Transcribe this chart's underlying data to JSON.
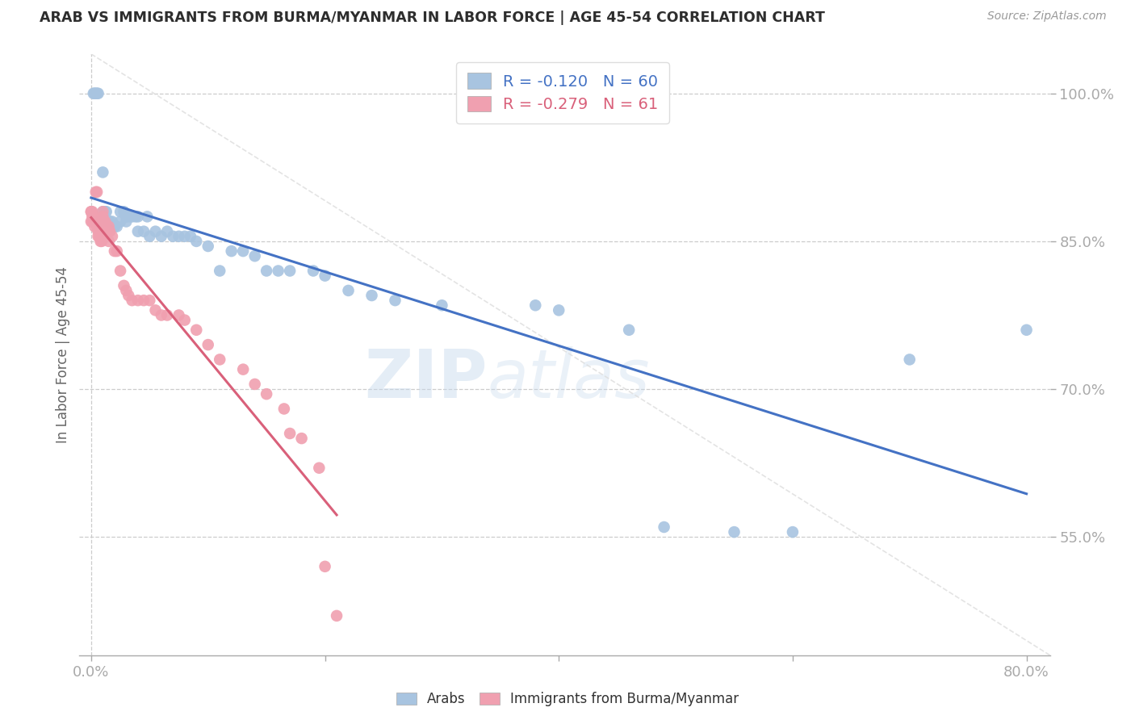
{
  "title": "ARAB VS IMMIGRANTS FROM BURMA/MYANMAR IN LABOR FORCE | AGE 45-54 CORRELATION CHART",
  "source": "Source: ZipAtlas.com",
  "ylabel": "In Labor Force | Age 45-54",
  "xlim": [
    -0.01,
    0.82
  ],
  "ylim": [
    0.43,
    1.04
  ],
  "ytick_vals": [
    0.55,
    0.7,
    0.85,
    1.0
  ],
  "ytick_labels": [
    "55.0%",
    "70.0%",
    "85.0%",
    "100.0%"
  ],
  "xtick_vals": [
    0.0,
    0.2,
    0.4,
    0.6,
    0.8
  ],
  "xtick_labels": [
    "0.0%",
    "",
    "",
    "",
    "80.0%"
  ],
  "arab_R": -0.12,
  "arab_N": 60,
  "burma_R": -0.279,
  "burma_N": 61,
  "arab_color": "#a8c4e0",
  "burma_color": "#f0a0b0",
  "arab_line_color": "#4472c4",
  "burma_line_color": "#d9607a",
  "axis_label_color": "#5b9bd5",
  "watermark": "ZIPatlas",
  "arab_x": [
    0.002,
    0.003,
    0.004,
    0.005,
    0.006,
    0.007,
    0.008,
    0.009,
    0.01,
    0.01,
    0.012,
    0.013,
    0.015,
    0.016,
    0.018,
    0.02,
    0.022,
    0.025,
    0.025,
    0.028,
    0.03,
    0.03,
    0.032,
    0.035,
    0.038,
    0.04,
    0.04,
    0.045,
    0.048,
    0.05,
    0.055,
    0.06,
    0.065,
    0.07,
    0.075,
    0.08,
    0.085,
    0.09,
    0.1,
    0.11,
    0.12,
    0.13,
    0.14,
    0.15,
    0.16,
    0.17,
    0.19,
    0.2,
    0.22,
    0.24,
    0.26,
    0.3,
    0.38,
    0.4,
    0.46,
    0.49,
    0.55,
    0.6,
    0.7,
    0.8
  ],
  "arab_y": [
    1.0,
    1.0,
    1.0,
    1.0,
    1.0,
    0.87,
    0.87,
    0.87,
    0.92,
    0.88,
    0.88,
    0.88,
    0.87,
    0.87,
    0.87,
    0.865,
    0.865,
    0.88,
    0.87,
    0.88,
    0.875,
    0.87,
    0.875,
    0.875,
    0.875,
    0.875,
    0.86,
    0.86,
    0.875,
    0.855,
    0.86,
    0.855,
    0.86,
    0.855,
    0.855,
    0.855,
    0.855,
    0.85,
    0.845,
    0.82,
    0.84,
    0.84,
    0.835,
    0.82,
    0.82,
    0.82,
    0.82,
    0.815,
    0.8,
    0.795,
    0.79,
    0.785,
    0.785,
    0.78,
    0.76,
    0.56,
    0.555,
    0.555,
    0.73,
    0.76
  ],
  "burma_x": [
    0.0,
    0.0,
    0.0,
    0.001,
    0.001,
    0.001,
    0.002,
    0.002,
    0.003,
    0.003,
    0.004,
    0.004,
    0.005,
    0.005,
    0.006,
    0.006,
    0.007,
    0.007,
    0.008,
    0.008,
    0.008,
    0.009,
    0.009,
    0.01,
    0.01,
    0.01,
    0.012,
    0.012,
    0.013,
    0.015,
    0.015,
    0.015,
    0.016,
    0.018,
    0.02,
    0.022,
    0.025,
    0.028,
    0.03,
    0.032,
    0.035,
    0.04,
    0.045,
    0.05,
    0.055,
    0.06,
    0.065,
    0.075,
    0.08,
    0.09,
    0.1,
    0.11,
    0.13,
    0.14,
    0.15,
    0.165,
    0.17,
    0.18,
    0.195,
    0.2,
    0.21
  ],
  "burma_y": [
    0.88,
    0.88,
    0.87,
    0.88,
    0.875,
    0.87,
    0.875,
    0.87,
    0.87,
    0.865,
    0.9,
    0.87,
    0.9,
    0.865,
    0.86,
    0.855,
    0.855,
    0.86,
    0.865,
    0.855,
    0.85,
    0.855,
    0.85,
    0.88,
    0.875,
    0.87,
    0.87,
    0.865,
    0.86,
    0.865,
    0.86,
    0.85,
    0.86,
    0.855,
    0.84,
    0.84,
    0.82,
    0.805,
    0.8,
    0.795,
    0.79,
    0.79,
    0.79,
    0.79,
    0.78,
    0.775,
    0.775,
    0.775,
    0.77,
    0.76,
    0.745,
    0.73,
    0.72,
    0.705,
    0.695,
    0.68,
    0.655,
    0.65,
    0.62,
    0.52,
    0.47
  ]
}
